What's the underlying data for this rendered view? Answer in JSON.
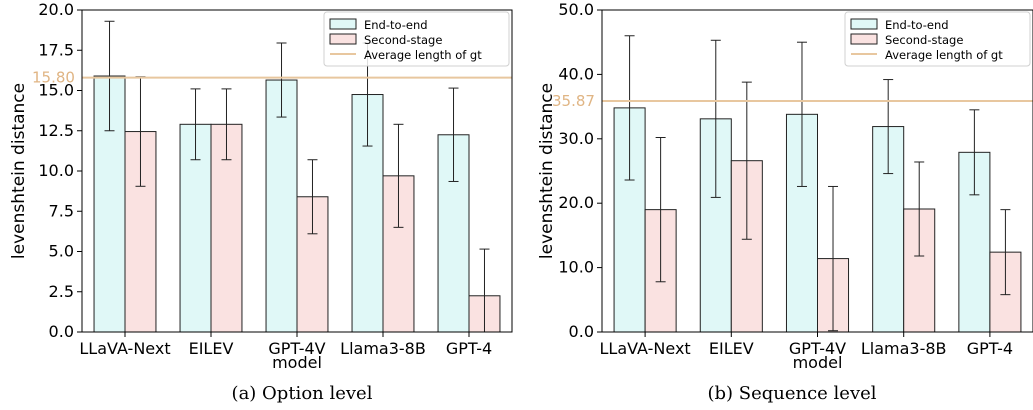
{
  "chart_data": [
    {
      "type": "bar",
      "categories": [
        "LLaVA-Next",
        "EILEV",
        "GPT-4V",
        "Llama3-8B",
        "GPT-4"
      ],
      "series": [
        {
          "name": "End-to-end",
          "values": [
            15.9,
            12.9,
            15.65,
            14.75,
            12.25
          ],
          "err": [
            3.4,
            2.2,
            2.3,
            3.2,
            2.9
          ]
        },
        {
          "name": "Second-stage",
          "values": [
            12.45,
            12.9,
            8.4,
            9.7,
            2.25
          ],
          "err": [
            3.4,
            2.2,
            2.3,
            3.2,
            2.9
          ]
        }
      ],
      "reference_line": {
        "name": "Average length of gt",
        "value": 15.8,
        "label": "15.80"
      },
      "xlabel": "model",
      "ylabel": "levenshtein distance",
      "ylim": [
        0,
        20
      ],
      "yticks": [
        "0.0",
        "2.5",
        "5.0",
        "7.5",
        "10.0",
        "12.5",
        "15.0",
        "17.5",
        "20.0"
      ],
      "grid": false,
      "legend": "top-right",
      "caption": "(a) Option level"
    },
    {
      "type": "bar",
      "categories": [
        "LLaVA-Next",
        "EILEV",
        "GPT-4V",
        "Llama3-8B",
        "GPT-4"
      ],
      "series": [
        {
          "name": "End-to-end",
          "values": [
            34.8,
            33.1,
            33.8,
            31.9,
            27.9
          ],
          "err": [
            11.2,
            12.2,
            11.2,
            7.3,
            6.6
          ]
        },
        {
          "name": "Second-stage",
          "values": [
            19.0,
            26.6,
            11.4,
            19.1,
            12.4
          ],
          "err": [
            11.2,
            12.2,
            11.2,
            7.3,
            6.6
          ]
        }
      ],
      "reference_line": {
        "name": "Average length of gt",
        "value": 35.87,
        "label": "35.87"
      },
      "xlabel": "model",
      "ylabel": "levenshtein distance",
      "ylim": [
        0,
        50
      ],
      "yticks": [
        "0.0",
        "10.0",
        "20.0",
        "30.0",
        "40.0",
        "50.0"
      ],
      "grid": false,
      "legend": "top-right",
      "caption": "(b) Sequence level"
    }
  ],
  "colors": {
    "end_to_end": "#e0f8f7",
    "second_stage": "#fae2e1",
    "reference_line": "#e8c79f",
    "reference_label": "#e0b584",
    "edge": "#222222"
  }
}
